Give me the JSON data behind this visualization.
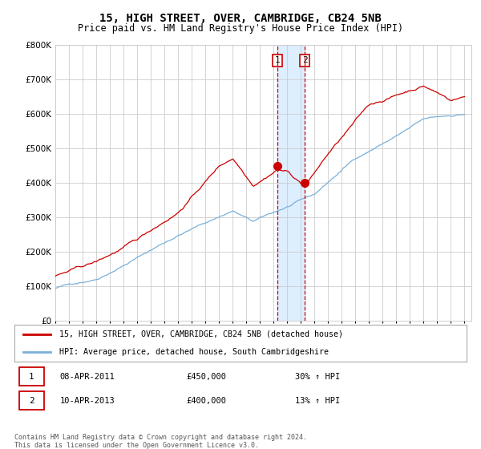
{
  "title": "15, HIGH STREET, OVER, CAMBRIDGE, CB24 5NB",
  "subtitle": "Price paid vs. HM Land Registry's House Price Index (HPI)",
  "legend_line1": "15, HIGH STREET, OVER, CAMBRIDGE, CB24 5NB (detached house)",
  "legend_line2": "HPI: Average price, detached house, South Cambridgeshire",
  "transaction1_date": "08-APR-2011",
  "transaction1_price": 450000,
  "transaction1_price_str": "£450,000",
  "transaction1_pct": "30% ↑ HPI",
  "transaction2_date": "10-APR-2013",
  "transaction2_price": 400000,
  "transaction2_price_str": "£400,000",
  "transaction2_pct": "13% ↑ HPI",
  "footer": "Contains HM Land Registry data © Crown copyright and database right 2024.\nThis data is licensed under the Open Government Licence v3.0.",
  "hpi_color": "#7ab0d9",
  "price_color": "#cc0000",
  "marker_color": "#cc0000",
  "vline_color": "#cc0000",
  "shade_color": "#ddeeff",
  "grid_color": "#cccccc",
  "bg_color": "#ffffff",
  "border_color": "#aaaaaa",
  "ylim": [
    0,
    800000
  ],
  "yticks": [
    0,
    100000,
    200000,
    300000,
    400000,
    500000,
    600000,
    700000,
    800000
  ],
  "xlim_start": 1995.0,
  "xlim_end": 2025.5,
  "t1_year": 2011.29,
  "t2_year": 2013.29
}
